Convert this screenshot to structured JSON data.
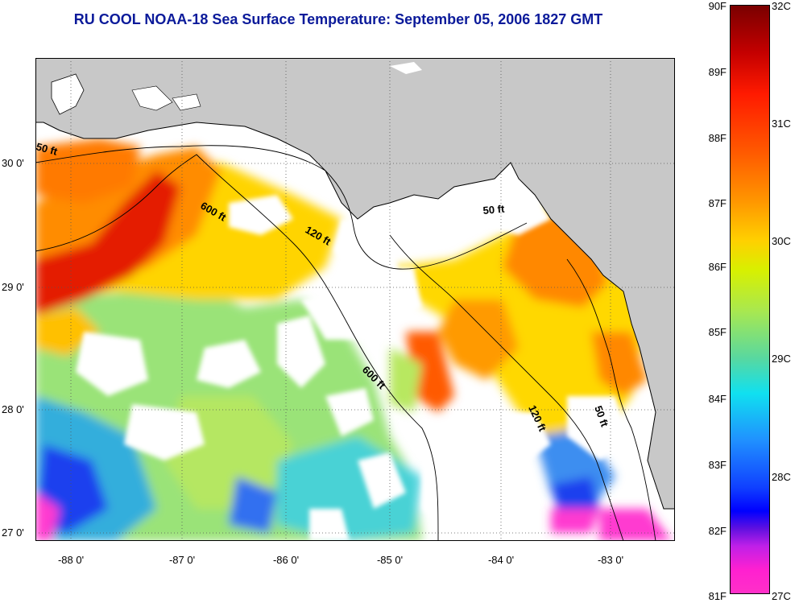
{
  "title": "RU COOL  NOAA-18  Sea Surface Temperature:  September 05, 2006 1827 GMT",
  "map": {
    "lat_labels": [
      "30 0'",
      "29 0'",
      "28 0'",
      "27 0'"
    ],
    "lon_labels": [
      "-88 0'",
      "-87 0'",
      "-86 0'",
      "-85 0'",
      "-84 0'",
      "-83 0'"
    ],
    "lat_range": [
      27,
      30.8
    ],
    "lon_range": [
      -88.3,
      -82.5
    ],
    "contour_labels": [
      "50 ft",
      "600 ft",
      "120 ft",
      "50 ft",
      "600 ft",
      "120 ft",
      "50 ft"
    ],
    "colors": {
      "land": "#c8c8c8",
      "no_data": "#ffffff",
      "gridline": "#555555"
    }
  },
  "colorbar": {
    "fahrenheit_labels": [
      "90F",
      "89F",
      "88F",
      "87F",
      "86F",
      "85F",
      "84F",
      "83F",
      "82F",
      "81F"
    ],
    "celsius_labels": [
      "32C",
      "31C",
      "30C",
      "29C",
      "28C",
      "27C"
    ]
  }
}
